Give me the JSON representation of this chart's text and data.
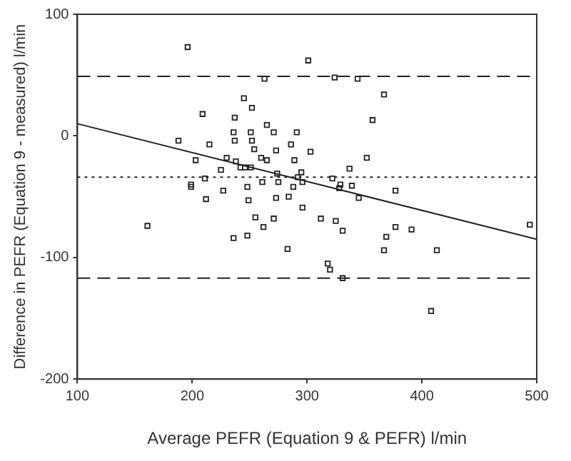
{
  "chart_data": {
    "type": "scatter",
    "xlabel": "Average PEFR (Equation 9 & PEFR) l/min",
    "ylabel": "Difference in PEFR (Equation 9 - measured) l/min",
    "xlim": [
      100,
      500
    ],
    "xticks": [
      100,
      200,
      300,
      400,
      500
    ],
    "ylim": [
      -200,
      100
    ],
    "yticks": [
      -200,
      -100,
      0,
      100
    ],
    "grid": false,
    "legend": false,
    "marker": "square",
    "series": [
      {
        "color": "#222222",
        "x": [
          196,
          301,
          263,
          324,
          344,
          367,
          245,
          252,
          209,
          237,
          357,
          265,
          236,
          271,
          251,
          291,
          188,
          237,
          252,
          215,
          286,
          254,
          273,
          303,
          203,
          230,
          260,
          265,
          289,
          352,
          238,
          242,
          246,
          251,
          225,
          337,
          274,
          295,
          292,
          322,
          211,
          199,
          199,
          261,
          275,
          296,
          329,
          328,
          339,
          288,
          248,
          227,
          377,
          212,
          249,
          273,
          284,
          345,
          296,
          161,
          255,
          271,
          312,
          325,
          262,
          331,
          377,
          391,
          369,
          236,
          248,
          494,
          283,
          367,
          413,
          318,
          320,
          331,
          408
        ],
        "values": [
          73,
          62,
          47,
          48,
          47,
          34,
          31,
          23,
          18,
          15,
          13,
          9,
          3,
          3,
          3,
          3,
          -4,
          -4,
          -4,
          -7,
          -7,
          -11,
          -12,
          -13,
          -20,
          -18,
          -18,
          -20,
          -20,
          -18,
          -21,
          -26,
          -26,
          -26,
          -28,
          -27,
          -31,
          -30,
          -34,
          -35,
          -35,
          -40,
          -42,
          -38,
          -38,
          -38,
          -40,
          -43,
          -41,
          -42,
          -42,
          -45,
          -45,
          -52,
          -53,
          -51,
          -50,
          -51,
          -59,
          -74,
          -67,
          -68,
          -68,
          -70,
          -75,
          -78,
          -75,
          -77,
          -83,
          -84,
          -82,
          -73,
          -93,
          -94,
          -94,
          -105,
          -110,
          -117,
          -144
        ]
      },
      {
        "type": "line",
        "color": "#222222",
        "x": [
          100,
          500
        ],
        "values": [
          10,
          -85
        ],
        "line_style": "solid",
        "marker": "none"
      }
    ],
    "ref_lines": [
      {
        "axis": "y",
        "value": 49,
        "line_style": "dashed",
        "color": "#222222"
      },
      {
        "axis": "y",
        "value": -34,
        "line_style": "dotted",
        "color": "#222222"
      },
      {
        "axis": "y",
        "value": -117,
        "line_style": "dashed",
        "color": "#222222"
      }
    ]
  }
}
